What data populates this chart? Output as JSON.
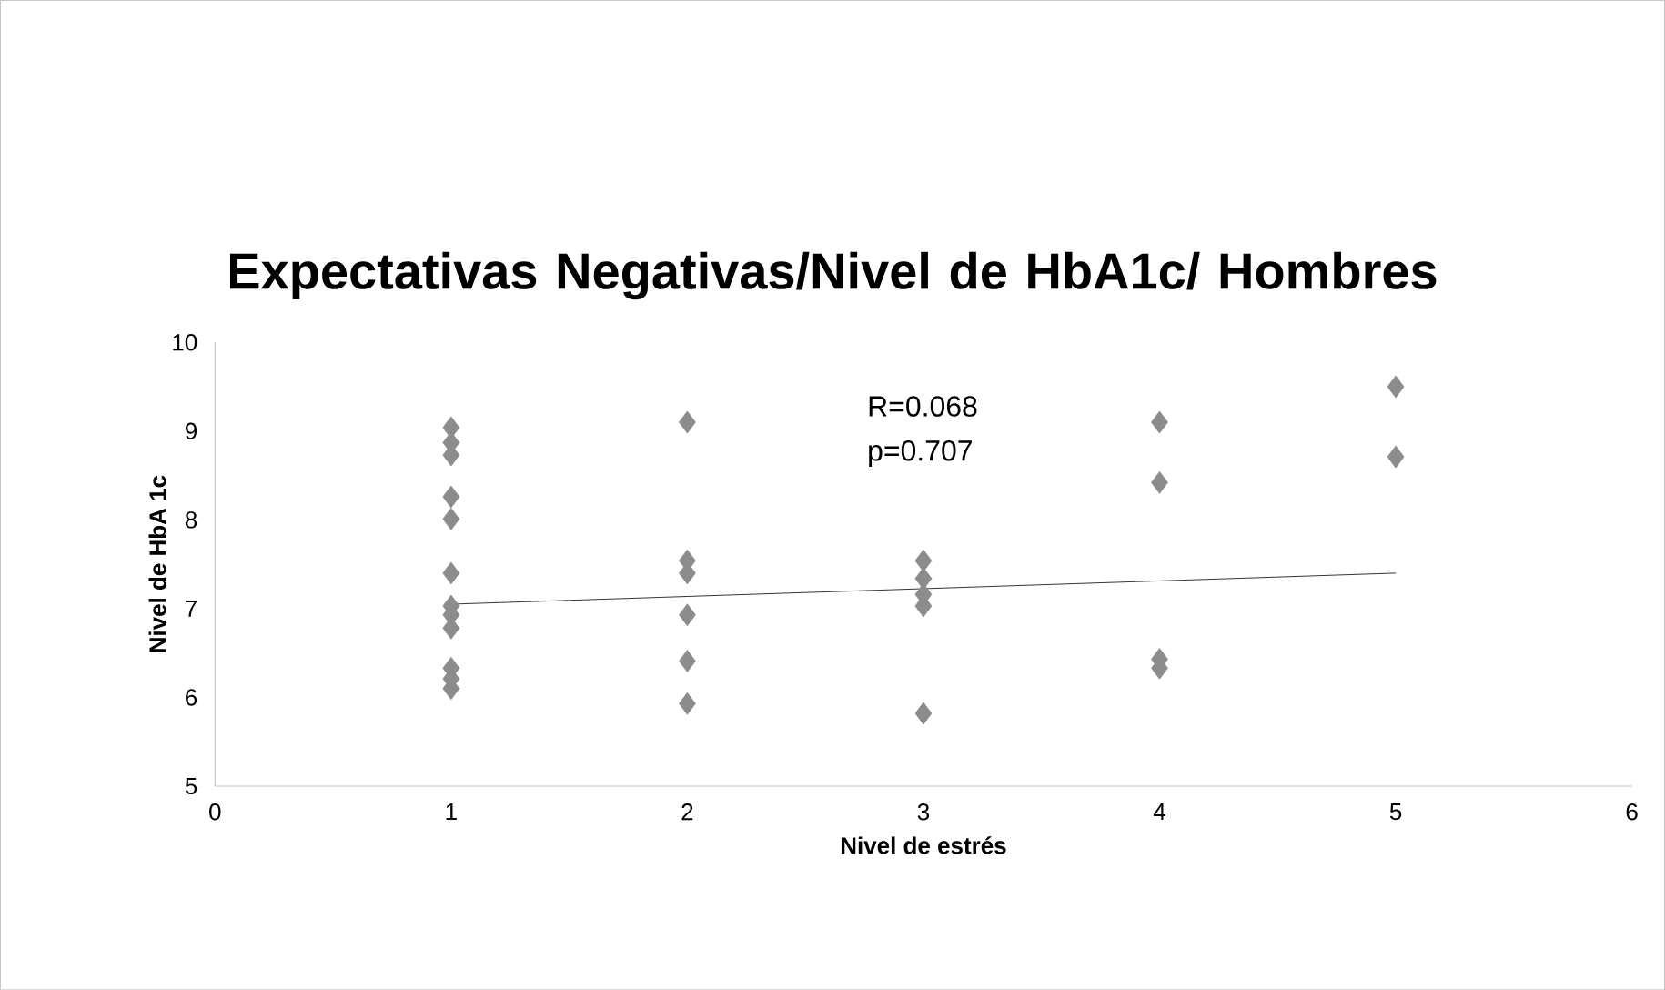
{
  "chart_data": {
    "type": "scatter",
    "title": "Expectativas Negativas/Nivel de HbA1c/ Hombres",
    "xlabel": "Nivel de estrés",
    "ylabel": "Nivel  de HbA 1c",
    "xlim": [
      0,
      6
    ],
    "xticks": [
      0,
      1,
      2,
      3,
      4,
      5,
      6
    ],
    "ylim": [
      5,
      10
    ],
    "yticks": [
      5,
      6,
      7,
      8,
      9,
      10
    ],
    "grid": false,
    "marker": "diamond",
    "series": [
      {
        "color": "#8c8c8c",
        "x": [
          1,
          1,
          1,
          1,
          1,
          1,
          1,
          1,
          1,
          1,
          1,
          1,
          2,
          2,
          2,
          2,
          2,
          2,
          3,
          3,
          3,
          3,
          3,
          4,
          4,
          4,
          4,
          5,
          5
        ],
        "values": [
          9.04,
          8.87,
          8.73,
          8.26,
          8.01,
          7.4,
          7.03,
          6.93,
          6.78,
          6.33,
          6.21,
          6.1,
          9.1,
          7.54,
          7.4,
          6.93,
          6.41,
          5.93,
          7.54,
          7.34,
          7.16,
          7.03,
          5.82,
          9.1,
          8.42,
          6.43,
          6.33,
          9.5,
          8.71
        ]
      },
      {
        "type": "line",
        "color": "#000000",
        "marker": "none",
        "x": [
          1,
          5
        ],
        "values": [
          7.05,
          7.4
        ]
      }
    ],
    "annotations": [
      "R=0.068",
      "p=0.707"
    ]
  }
}
